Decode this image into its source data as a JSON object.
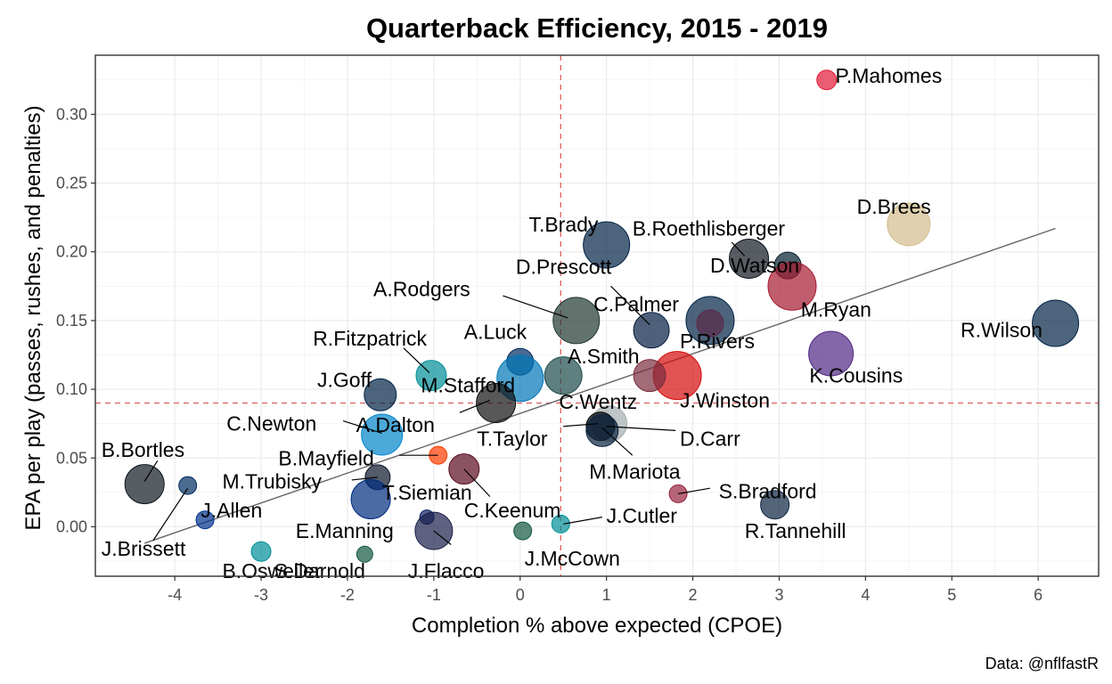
{
  "chart_data": {
    "type": "scatter",
    "title": "Quarterback Efficiency, 2015 - 2019",
    "xlabel": "Completion % above expected (CPOE)",
    "ylabel": "EPA per play (passes, rushes, and penalties)",
    "caption": "Data: @nflfastR",
    "xlim": [
      -4.92,
      6.7
    ],
    "ylim": [
      -0.036,
      0.343
    ],
    "x_ticks": [
      -4,
      -3,
      -2,
      -1,
      0,
      1,
      2,
      3,
      4,
      5,
      6
    ],
    "x_tick_labels": [
      "-4",
      "-3",
      "-2",
      "-1",
      "0",
      "1",
      "2",
      "3",
      "4",
      "5",
      "6"
    ],
    "y_ticks": [
      0.0,
      0.05,
      0.1,
      0.15,
      0.2,
      0.25,
      0.3
    ],
    "y_tick_labels": [
      "0.00",
      "0.05",
      "0.10",
      "0.15",
      "0.20",
      "0.25",
      "0.30"
    ],
    "grid": true,
    "reference_lines": {
      "x_mean": 0.47,
      "y_mean": 0.09,
      "color": "#e06666"
    },
    "trend_line": {
      "x": [
        -4.35,
        6.2
      ],
      "y": [
        -0.012,
        0.217
      ],
      "color": "#666666"
    },
    "points": [
      {
        "name": "P.Mahomes",
        "x": 3.55,
        "y": 0.325,
        "size": 11,
        "color": "#E31837"
      },
      {
        "name": "D.Brees",
        "x": 4.5,
        "y": 0.22,
        "size": 24,
        "color": "#D3BC8D"
      },
      {
        "name": "T.Brady",
        "x": 1.0,
        "y": 0.205,
        "size": 26,
        "color": "#002244"
      },
      {
        "name": "B.Roethlisberger",
        "x": 2.65,
        "y": 0.195,
        "size": 22,
        "color": "#101820"
      },
      {
        "name": "D.Watson",
        "x": 3.1,
        "y": 0.19,
        "size": 15,
        "color": "#03202F"
      },
      {
        "name": "M.Ryan",
        "x": 3.15,
        "y": 0.175,
        "size": 27,
        "color": "#A71930"
      },
      {
        "name": "A.Rodgers",
        "x": 0.65,
        "y": 0.15,
        "size": 26,
        "color": "#203731"
      },
      {
        "name": "D.Prescott",
        "x": 1.52,
        "y": 0.143,
        "size": 20,
        "color": "#041E42"
      },
      {
        "name": "C.Palmer",
        "x": 2.2,
        "y": 0.15,
        "size": 27,
        "color": "#002244"
      },
      {
        "name": "P.Rivers",
        "x": 2.2,
        "y": 0.148,
        "size": 15,
        "color": "#5b2a4a"
      },
      {
        "name": "R.Wilson",
        "x": 6.2,
        "y": 0.148,
        "size": 26,
        "color": "#002244"
      },
      {
        "name": "K.Cousins",
        "x": 3.6,
        "y": 0.126,
        "size": 25,
        "color": "#4F2683"
      },
      {
        "name": "A.Luck",
        "x": 0.0,
        "y": 0.12,
        "size": 15,
        "color": "#002C5F"
      },
      {
        "name": "A.Smith",
        "x": 0.5,
        "y": 0.11,
        "size": 21,
        "color": "#1c4a4a"
      },
      {
        "name": "R.Fitzpatrick",
        "x": -1.03,
        "y": 0.11,
        "size": 17,
        "color": "#008E97"
      },
      {
        "name": "M.Stafford",
        "x": 0.0,
        "y": 0.108,
        "size": 26,
        "color": "#0076B6"
      },
      {
        "name": "J.Winston",
        "x": 1.82,
        "y": 0.11,
        "size": 27,
        "color": "#D50A0A"
      },
      {
        "name": "C.Wentz",
        "x": 1.5,
        "y": 0.11,
        "size": 18,
        "color": "#7a2e3e"
      },
      {
        "name": "J.Goff",
        "x": -1.62,
        "y": 0.096,
        "size": 18,
        "color": "#002244"
      },
      {
        "name": "A.Dalton",
        "x": -0.28,
        "y": 0.09,
        "size": 22,
        "color": "#111111"
      },
      {
        "name": "C.Newton",
        "x": -1.6,
        "y": 0.067,
        "size": 23,
        "color": "#0085CA"
      },
      {
        "name": "T.Taylor",
        "x": 1.03,
        "y": 0.075,
        "size": 20,
        "color": "#A5ACAF"
      },
      {
        "name": "D.Carr",
        "x": 0.93,
        "y": 0.073,
        "size": 16,
        "color": "#000000"
      },
      {
        "name": "M.Mariota",
        "x": 0.95,
        "y": 0.07,
        "size": 18,
        "color": "#0C2340"
      },
      {
        "name": "B.Bortles",
        "x": -4.35,
        "y": 0.031,
        "size": 22,
        "color": "#101820"
      },
      {
        "name": "J.Allen",
        "x": -3.65,
        "y": 0.005,
        "size": 10,
        "color": "#00338D"
      },
      {
        "name": "J.Brissett",
        "x": -3.85,
        "y": 0.03,
        "size": 10,
        "color": "#002C5F"
      },
      {
        "name": "B.Mayfield",
        "x": -0.95,
        "y": 0.052,
        "size": 10,
        "color": "#FF3C00"
      },
      {
        "name": "T.Siemian",
        "x": -0.65,
        "y": 0.042,
        "size": 17,
        "color": "#5b0a1f"
      },
      {
        "name": "M.Trubisky",
        "x": -1.65,
        "y": 0.036,
        "size": 14,
        "color": "#0B162A"
      },
      {
        "name": "C.Keenum",
        "x": -1.73,
        "y": 0.02,
        "size": 22,
        "color": "#002C7F"
      },
      {
        "name": "E.Manning",
        "x": -1.08,
        "y": 0.007,
        "size": 8,
        "color": "#0B2265"
      },
      {
        "name": "J.Flacco",
        "x": -1.0,
        "y": -0.003,
        "size": 21,
        "color": "#1a1f4a"
      },
      {
        "name": "J.McCown",
        "x": 0.03,
        "y": -0.003,
        "size": 10,
        "color": "#125740"
      },
      {
        "name": "J.Cutler",
        "x": 0.47,
        "y": 0.002,
        "size": 10,
        "color": "#008E97"
      },
      {
        "name": "S.Bradford",
        "x": 1.83,
        "y": 0.024,
        "size": 10,
        "color": "#97233F"
      },
      {
        "name": "R.Tannehill",
        "x": 2.95,
        "y": 0.016,
        "size": 16,
        "color": "#0C2340"
      },
      {
        "name": "B.Osweiler",
        "x": -3.0,
        "y": -0.018,
        "size": 11,
        "color": "#008E97"
      },
      {
        "name": "S.Darnold",
        "x": -1.8,
        "y": -0.02,
        "size": 9,
        "color": "#125740"
      }
    ],
    "labels": [
      {
        "name": "P.Mahomes",
        "x": 3.65,
        "y": 0.328
      },
      {
        "name": "D.Brees",
        "x": 3.9,
        "y": 0.233
      },
      {
        "name": "T.Brady",
        "x": 0.1,
        "y": 0.22
      },
      {
        "name": "B.Roethlisberger",
        "x": 1.3,
        "y": 0.217
      },
      {
        "name": "D.Watson",
        "x": 2.2,
        "y": 0.19
      },
      {
        "name": "D.Prescott",
        "x": -0.05,
        "y": 0.189
      },
      {
        "name": "A.Rodgers",
        "x": -1.7,
        "y": 0.173
      },
      {
        "name": "C.Palmer",
        "x": 0.85,
        "y": 0.162
      },
      {
        "name": "M.Ryan",
        "x": 3.25,
        "y": 0.158
      },
      {
        "name": "A.Luck",
        "x": -0.65,
        "y": 0.142
      },
      {
        "name": "R.Wilson",
        "x": 5.1,
        "y": 0.143
      },
      {
        "name": "P.Rivers",
        "x": 1.85,
        "y": 0.135
      },
      {
        "name": "R.Fitzpatrick",
        "x": -2.4,
        "y": 0.137
      },
      {
        "name": "A.Smith",
        "x": 0.55,
        "y": 0.124
      },
      {
        "name": "K.Cousins",
        "x": 3.35,
        "y": 0.11
      },
      {
        "name": "J.Goff",
        "x": -2.35,
        "y": 0.107
      },
      {
        "name": "M.Stafford",
        "x": -1.15,
        "y": 0.103
      },
      {
        "name": "J.Winston",
        "x": 1.85,
        "y": 0.092
      },
      {
        "name": "C.Wentz",
        "x": 0.45,
        "y": 0.091
      },
      {
        "name": "C.Newton",
        "x": -3.4,
        "y": 0.075
      },
      {
        "name": "A.Dalton",
        "x": -1.9,
        "y": 0.074
      },
      {
        "name": "D.Carr",
        "x": 1.85,
        "y": 0.064
      },
      {
        "name": "T.Taylor",
        "x": -0.5,
        "y": 0.064
      },
      {
        "name": "B.Bortles",
        "x": -4.85,
        "y": 0.056
      },
      {
        "name": "B.Mayfield",
        "x": -2.8,
        "y": 0.05
      },
      {
        "name": "M.Mariota",
        "x": 0.8,
        "y": 0.04
      },
      {
        "name": "M.Trubisky",
        "x": -3.45,
        "y": 0.033
      },
      {
        "name": "S.Bradford",
        "x": 2.3,
        "y": 0.026
      },
      {
        "name": "T.Siemian",
        "x": -1.6,
        "y": 0.025
      },
      {
        "name": "J.Allen",
        "x": -3.7,
        "y": 0.012
      },
      {
        "name": "C.Keenum",
        "x": -0.65,
        "y": 0.012
      },
      {
        "name": "J.Cutler",
        "x": 1.0,
        "y": 0.008
      },
      {
        "name": "R.Tannehill",
        "x": 2.6,
        "y": -0.003
      },
      {
        "name": "E.Manning",
        "x": -2.6,
        "y": -0.003
      },
      {
        "name": "J.Brissett",
        "x": -4.85,
        "y": -0.016
      },
      {
        "name": "J.McCown",
        "x": 0.05,
        "y": -0.023
      },
      {
        "name": "J.Flacco",
        "x": -1.3,
        "y": -0.032
      },
      {
        "name": "B.Osweiler",
        "x": -3.45,
        "y": -0.032
      },
      {
        "name": "S.Darnold",
        "x": -2.85,
        "y": -0.032
      }
    ],
    "leader_lines": [
      {
        "name": "A.Rodgers",
        "from": [
          -0.2,
          0.168
        ],
        "to": [
          0.55,
          0.152
        ]
      },
      {
        "name": "D.Prescott",
        "from": [
          1.05,
          0.175
        ],
        "to": [
          1.5,
          0.147
        ]
      },
      {
        "name": "B.Roethlisberger",
        "from": [
          2.45,
          0.207
        ],
        "to": [
          2.6,
          0.197
        ]
      },
      {
        "name": "R.Fitzpatrick",
        "from": [
          -1.35,
          0.13
        ],
        "to": [
          -1.05,
          0.112
        ]
      },
      {
        "name": "A.Dalton",
        "from": [
          -0.7,
          0.083
        ],
        "to": [
          -0.35,
          0.092
        ]
      },
      {
        "name": "C.Newton",
        "from": [
          -2.05,
          0.077
        ],
        "to": [
          -1.6,
          0.068
        ]
      },
      {
        "name": "D.Carr",
        "from": [
          1.8,
          0.07
        ],
        "to": [
          1.0,
          0.073
        ]
      },
      {
        "name": "M.Mariota",
        "from": [
          1.3,
          0.052
        ],
        "to": [
          0.95,
          0.072
        ]
      },
      {
        "name": "B.Bortles",
        "from": [
          -4.2,
          0.048
        ],
        "to": [
          -4.35,
          0.033
        ]
      },
      {
        "name": "B.Mayfield",
        "from": [
          -1.4,
          0.052
        ],
        "to": [
          -0.95,
          0.052
        ]
      },
      {
        "name": "T.Siemian",
        "from": [
          -0.35,
          0.022
        ],
        "to": [
          -0.65,
          0.042
        ]
      },
      {
        "name": "M.Trubisky",
        "from": [
          -1.95,
          0.034
        ],
        "to": [
          -1.65,
          0.036
        ]
      },
      {
        "name": "S.Bradford",
        "from": [
          2.2,
          0.028
        ],
        "to": [
          1.83,
          0.024
        ]
      },
      {
        "name": "J.Cutler",
        "from": [
          0.95,
          0.007
        ],
        "to": [
          0.5,
          0.002
        ]
      },
      {
        "name": "J.Flacco",
        "from": [
          -0.8,
          -0.013
        ],
        "to": [
          -1.0,
          -0.003
        ]
      },
      {
        "name": "J.Brissett",
        "from": [
          -4.25,
          -0.01
        ],
        "to": [
          -3.85,
          0.028
        ]
      },
      {
        "name": "T.Taylor",
        "from": [
          0.5,
          0.073
        ],
        "to": [
          0.9,
          0.075
        ]
      }
    ]
  }
}
